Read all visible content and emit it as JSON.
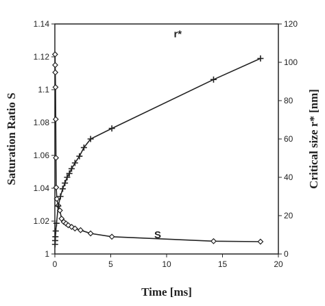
{
  "chart_data": {
    "type": "line",
    "title": "",
    "xlabel": "Time [ms]",
    "ylabel_left": "Saturation Ratio S",
    "ylabel_right": "Critical size r* [nm]",
    "xlim": [
      0,
      20
    ],
    "ylim_left": [
      1,
      1.14
    ],
    "ylim_right": [
      0,
      120
    ],
    "x_ticks": [
      0,
      5,
      10,
      15,
      20
    ],
    "y_left_ticks": [
      1,
      1.02,
      1.04,
      1.06,
      1.08,
      1.1,
      1.12,
      1.14
    ],
    "y_right_ticks": [
      0,
      20,
      40,
      60,
      80,
      100,
      120
    ],
    "grid": false,
    "colors": {
      "series": "#222222"
    },
    "series": [
      {
        "name": "S",
        "axis": "left",
        "marker": "diamond",
        "label_at": {
          "x": 9.2,
          "y": 1.0095
        },
        "points": [
          [
            0.02,
            1.1215
          ],
          [
            0.03,
            1.115
          ],
          [
            0.04,
            1.1105
          ],
          [
            0.06,
            1.1015
          ],
          [
            0.08,
            1.082
          ],
          [
            0.1,
            1.0585
          ],
          [
            0.12,
            1.0405
          ],
          [
            0.18,
            1.0335
          ],
          [
            0.3,
            1.0295
          ],
          [
            0.45,
            1.0265
          ],
          [
            0.6,
            1.0215
          ],
          [
            0.8,
            1.0195
          ],
          [
            1.0,
            1.0185
          ],
          [
            1.2,
            1.0175
          ],
          [
            1.5,
            1.0165
          ],
          [
            1.8,
            1.0155
          ],
          [
            2.3,
            1.0145
          ],
          [
            3.2,
            1.0125
          ],
          [
            5.1,
            1.0105
          ],
          [
            14.2,
            1.0078
          ],
          [
            18.4,
            1.0075
          ]
        ]
      },
      {
        "name": "r*",
        "axis": "right",
        "marker": "plus",
        "label_at": {
          "x": 11.0,
          "y": 113
        },
        "points": [
          [
            0.02,
            5
          ],
          [
            0.03,
            7
          ],
          [
            0.05,
            9
          ],
          [
            0.08,
            12
          ],
          [
            0.15,
            16
          ],
          [
            0.3,
            25
          ],
          [
            0.5,
            30
          ],
          [
            0.7,
            34
          ],
          [
            0.9,
            37
          ],
          [
            1.1,
            40
          ],
          [
            1.3,
            42
          ],
          [
            1.5,
            44.5
          ],
          [
            1.8,
            47.5
          ],
          [
            2.2,
            51
          ],
          [
            2.6,
            55.5
          ],
          [
            3.2,
            60
          ],
          [
            5.1,
            65.5
          ],
          [
            14.2,
            91
          ],
          [
            18.4,
            102
          ]
        ]
      }
    ]
  }
}
